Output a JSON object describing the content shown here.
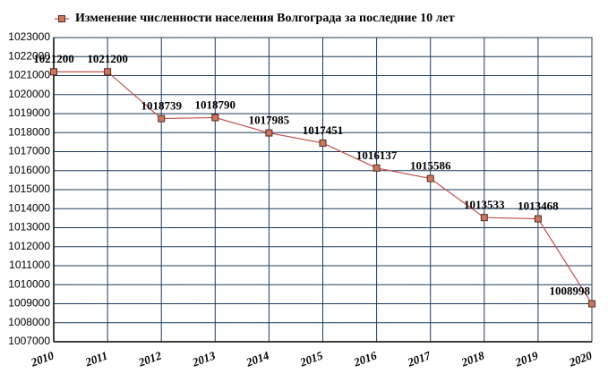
{
  "chart_data": {
    "type": "line",
    "categories": [
      "2010",
      "2011",
      "2012",
      "2013",
      "2014",
      "2015",
      "2016",
      "2017",
      "2018",
      "2019",
      "2020"
    ],
    "series": [
      {
        "name": "Изменение численности населения Волгограда за последние 10 лет",
        "color": "#c0504d",
        "values": [
          1021200,
          1021200,
          1018739,
          1018790,
          1017985,
          1017451,
          1016137,
          1015586,
          1013533,
          1013468,
          1008998
        ]
      }
    ],
    "ylim": [
      1007000,
      1023000
    ],
    "yticks": [
      1007000,
      1008000,
      1009000,
      1010000,
      1011000,
      1012000,
      1013000,
      1014000,
      1015000,
      1016000,
      1017000,
      1018000,
      1019000,
      1020000,
      1021000,
      1022000,
      1023000
    ],
    "grid": true
  }
}
